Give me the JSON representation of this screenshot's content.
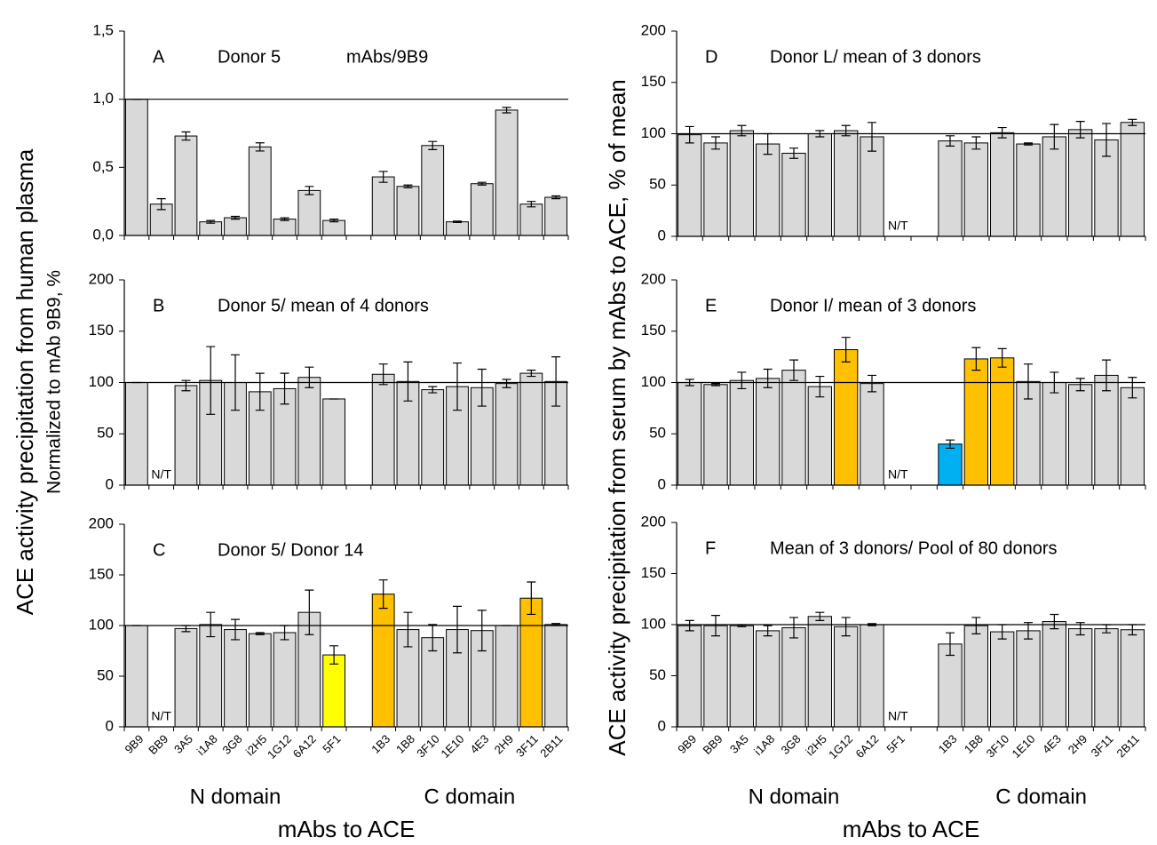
{
  "axis_labels": {
    "left": "ACE activity precipitation from human plasma",
    "left_sub": "Normalized to mAb 9B9, %",
    "right": "ACE activity precipitation from serum by mAbs to ACE, % of mean"
  },
  "chart_data": [
    {
      "type": "bar",
      "label": "A",
      "title": "Donor  5",
      "subtitle": "mAbs/9B9",
      "values": [
        1.0,
        0.23,
        0.73,
        0.1,
        0.13,
        0.65,
        0.12,
        0.33,
        0.11,
        null,
        0.43,
        0.36,
        0.66,
        0.1,
        0.38,
        0.92,
        0.23,
        0.28
      ],
      "errors": [
        0,
        0.04,
        0.03,
        0.01,
        0.01,
        0.03,
        0.01,
        0.03,
        0.01,
        null,
        0.04,
        0.01,
        0.03,
        0.005,
        0.01,
        0.02,
        0.02,
        0.01
      ],
      "colors": [
        "#d9d9d9",
        "#d9d9d9",
        "#d9d9d9",
        "#d9d9d9",
        "#d9d9d9",
        "#d9d9d9",
        "#d9d9d9",
        "#d9d9d9",
        "#d9d9d9",
        null,
        "#d9d9d9",
        "#d9d9d9",
        "#d9d9d9",
        "#d9d9d9",
        "#d9d9d9",
        "#d9d9d9",
        "#d9d9d9",
        "#d9d9d9"
      ],
      "ylim": [
        0,
        1.5
      ],
      "yticks": [
        {
          "value": 0,
          "label": "0,0"
        },
        {
          "value": 0.5,
          "label": "0,5"
        },
        {
          "value": 1,
          "label": "1,0"
        },
        {
          "value": 1.5,
          "label": "1,5"
        }
      ],
      "ref_line": 1,
      "grid": false
    },
    {
      "type": "bar",
      "label": "B",
      "title": "Donor  5/ mean of 4 donors",
      "values": [
        100,
        null,
        97,
        102,
        100,
        91,
        94,
        105,
        84,
        null,
        108,
        101,
        93,
        96,
        95,
        99,
        109,
        101
      ],
      "errors": [
        0,
        null,
        5,
        33,
        27,
        18,
        15,
        10,
        0,
        null,
        10,
        19,
        3,
        23,
        18,
        4,
        3,
        24
      ],
      "value_labels": [
        null,
        "N/T",
        null,
        null,
        null,
        null,
        null,
        null,
        null,
        null,
        null,
        null,
        null,
        null,
        null,
        null,
        null,
        null
      ],
      "colors": [
        "#d9d9d9",
        null,
        "#d9d9d9",
        "#d9d9d9",
        "#d9d9d9",
        "#d9d9d9",
        "#d9d9d9",
        "#d9d9d9",
        "#d9d9d9",
        null,
        "#d9d9d9",
        "#d9d9d9",
        "#d9d9d9",
        "#d9d9d9",
        "#d9d9d9",
        "#d9d9d9",
        "#d9d9d9",
        "#d9d9d9"
      ],
      "ylim": [
        0,
        200
      ],
      "yticks": [
        0,
        50,
        100,
        150,
        200
      ],
      "ref_line": 100,
      "grid": false
    },
    {
      "type": "bar",
      "label": "C",
      "title": "Donor  5/ Donor 14",
      "categories": [
        "9B9",
        "BB9",
        "3A5",
        "i1A8",
        "3G8",
        "i2H5",
        "1G12",
        "6A12",
        "5F1",
        null,
        "1B3",
        "1B8",
        "3F10",
        "1E10",
        "4E3",
        "2H9",
        "3F11",
        "2B11"
      ],
      "values": [
        100,
        null,
        97,
        101,
        96,
        92,
        93,
        113,
        71,
        null,
        131,
        96,
        88,
        96,
        95,
        100,
        127,
        101
      ],
      "errors": [
        0,
        null,
        3,
        12,
        10,
        1,
        7,
        22,
        9,
        null,
        14,
        17,
        13,
        23,
        20,
        0,
        16,
        1
      ],
      "value_labels": [
        null,
        "N/T",
        null,
        null,
        null,
        null,
        null,
        null,
        null,
        null,
        null,
        null,
        null,
        null,
        null,
        null,
        null,
        null
      ],
      "colors": [
        "#d9d9d9",
        null,
        "#d9d9d9",
        "#d9d9d9",
        "#d9d9d9",
        "#d9d9d9",
        "#d9d9d9",
        "#d9d9d9",
        "#ffff00",
        null,
        "#ffc000",
        "#d9d9d9",
        "#d9d9d9",
        "#d9d9d9",
        "#d9d9d9",
        "#d9d9d9",
        "#ffc000",
        "#d9d9d9"
      ],
      "ylim": [
        0,
        200
      ],
      "yticks": [
        0,
        50,
        100,
        150,
        200
      ],
      "ref_line": 100,
      "grid": false,
      "group_labels": [
        "N domain",
        "C domain"
      ],
      "xlabel": "mAbs to ACE"
    },
    {
      "type": "bar",
      "label": "D",
      "title": "Donor L/ mean of 3 donors",
      "values": [
        99,
        91,
        103,
        90,
        81,
        100,
        103,
        97,
        null,
        null,
        93,
        91,
        101,
        90,
        97,
        104,
        94,
        111
      ],
      "errors": [
        8,
        6,
        5,
        10,
        5,
        3,
        5,
        14,
        null,
        null,
        5,
        6,
        5,
        1,
        12,
        8,
        16,
        3
      ],
      "value_labels": [
        null,
        null,
        null,
        null,
        null,
        null,
        null,
        null,
        "N/T",
        null,
        null,
        null,
        null,
        null,
        null,
        null,
        null,
        null
      ],
      "colors": [
        "#d9d9d9",
        "#d9d9d9",
        "#d9d9d9",
        "#d9d9d9",
        "#d9d9d9",
        "#d9d9d9",
        "#d9d9d9",
        "#d9d9d9",
        null,
        null,
        "#d9d9d9",
        "#d9d9d9",
        "#d9d9d9",
        "#d9d9d9",
        "#d9d9d9",
        "#d9d9d9",
        "#d9d9d9",
        "#d9d9d9"
      ],
      "ylim": [
        0,
        200
      ],
      "yticks": [
        0,
        50,
        100,
        150,
        200
      ],
      "ref_line": 100,
      "grid": false
    },
    {
      "type": "bar",
      "label": "E",
      "title": "Donor I/ mean of 3 donors",
      "values": [
        100,
        98,
        102,
        104,
        112,
        96,
        132,
        99,
        null,
        null,
        40,
        123,
        124,
        101,
        100,
        98,
        107,
        95
      ],
      "errors": [
        3,
        1,
        8,
        9,
        10,
        10,
        12,
        8,
        null,
        null,
        4,
        11,
        9,
        17,
        10,
        6,
        15,
        10
      ],
      "value_labels": [
        null,
        null,
        null,
        null,
        null,
        null,
        null,
        null,
        "N/T",
        null,
        null,
        null,
        null,
        null,
        null,
        null,
        null,
        null
      ],
      "colors": [
        "#d9d9d9",
        "#d9d9d9",
        "#d9d9d9",
        "#d9d9d9",
        "#d9d9d9",
        "#d9d9d9",
        "#ffc000",
        "#d9d9d9",
        null,
        null,
        "#00b0f0",
        "#ffc000",
        "#ffc000",
        "#d9d9d9",
        "#d9d9d9",
        "#d9d9d9",
        "#d9d9d9",
        "#d9d9d9"
      ],
      "ylim": [
        0,
        200
      ],
      "yticks": [
        0,
        50,
        100,
        150,
        200
      ],
      "ref_line": 100,
      "grid": false
    },
    {
      "type": "bar",
      "label": "F",
      "title": "Mean of 3 donors/ Pool of 80 donors",
      "categories": [
        "9B9",
        "BB9",
        "3A5",
        "i1A8",
        "3G8",
        "i2H5",
        "1G12",
        "6A12",
        "5F1",
        null,
        "1B3",
        "1B8",
        "3F10",
        "1E10",
        "4E3",
        "2H9",
        "3F11",
        "2B11"
      ],
      "values": [
        99,
        99,
        99,
        94,
        97,
        108,
        98,
        100,
        null,
        null,
        81,
        99,
        93,
        94,
        103,
        96,
        96,
        95
      ],
      "errors": [
        5,
        10,
        1,
        5,
        10,
        4,
        9,
        1,
        null,
        null,
        11,
        8,
        7,
        8,
        7,
        6,
        4,
        5
      ],
      "value_labels": [
        null,
        null,
        null,
        null,
        null,
        null,
        null,
        null,
        "N/T",
        null,
        null,
        null,
        null,
        null,
        null,
        null,
        null,
        null
      ],
      "colors": [
        "#d9d9d9",
        "#d9d9d9",
        "#d9d9d9",
        "#d9d9d9",
        "#d9d9d9",
        "#d9d9d9",
        "#d9d9d9",
        "#d9d9d9",
        null,
        null,
        "#d9d9d9",
        "#d9d9d9",
        "#d9d9d9",
        "#d9d9d9",
        "#d9d9d9",
        "#d9d9d9",
        "#d9d9d9",
        "#d9d9d9"
      ],
      "ylim": [
        0,
        200
      ],
      "yticks": [
        0,
        50,
        100,
        150,
        200
      ],
      "ref_line": 100,
      "grid": false,
      "group_labels": [
        "N domain",
        "C domain"
      ],
      "xlabel": "mAbs to ACE"
    }
  ]
}
